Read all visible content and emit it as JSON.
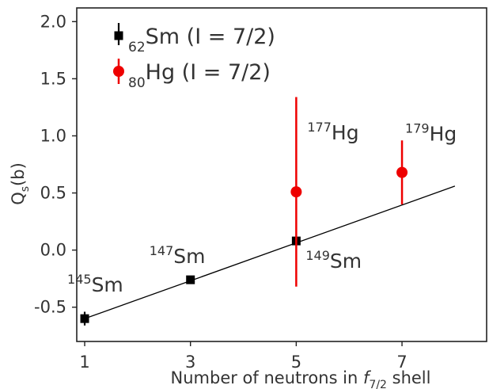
{
  "chart_data": {
    "type": "scatter",
    "xlabel": {
      "prefix": "Number of neutrons in ",
      "f": "f",
      "sub": "7/2",
      "suffix": " shell"
    },
    "ylabel": {
      "main": "Q",
      "sub": "s",
      "suffix": "(b)"
    },
    "xlim": [
      0.85,
      8.6
    ],
    "ylim": [
      -0.8,
      2.12
    ],
    "xticks": [
      1,
      3,
      5,
      7
    ],
    "yticks": [
      -0.5,
      0.0,
      0.5,
      1.0,
      1.5,
      2.0
    ],
    "ytick_labels": [
      "-0.5",
      "0.0",
      "0.5",
      "1.0",
      "1.5",
      "2.0"
    ],
    "grid": false,
    "legend_position": "top-left",
    "series": [
      {
        "key": "sm",
        "legend": {
          "sub": "62",
          "element": "Sm",
          "spin": "(I = 7/2)"
        },
        "color": "#000000",
        "marker": "square",
        "points": [
          {
            "x": 1,
            "y": -0.6,
            "err": 0.06,
            "label_mass": "145",
            "label_el": "Sm"
          },
          {
            "x": 3,
            "y": -0.26,
            "err": 0.0,
            "label_mass": "147",
            "label_el": "Sm"
          },
          {
            "x": 5,
            "y": 0.08,
            "err": 0.0,
            "label_mass": "149",
            "label_el": "Sm"
          }
        ]
      },
      {
        "key": "hg",
        "legend": {
          "sub": "80",
          "element": "Hg",
          "spin": "(I = 7/2)"
        },
        "color": "#ee0000",
        "marker": "circle",
        "points": [
          {
            "x": 5,
            "y": 0.51,
            "err_low": 0.83,
            "err_high": 0.83,
            "label_mass": "177",
            "label_el": "Hg"
          },
          {
            "x": 7,
            "y": 0.68,
            "err_low": 0.28,
            "err_high": 0.28,
            "label_mass": "179",
            "label_el": "Hg"
          }
        ]
      }
    ],
    "fit_line": {
      "x": [
        1,
        8
      ],
      "y": [
        -0.6,
        0.56
      ],
      "color": "#000000"
    }
  }
}
